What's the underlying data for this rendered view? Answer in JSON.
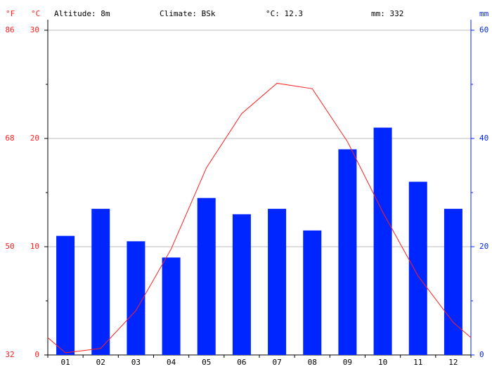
{
  "chart_data": {
    "type": "climate",
    "header": [
      "Altitude: 8m",
      "Climate: BSk",
      "°C: 12.3",
      "mm: 332"
    ],
    "unit_f": "°F",
    "unit_c": "°C",
    "unit_mm": "mm",
    "categories": [
      "01",
      "02",
      "03",
      "04",
      "05",
      "06",
      "07",
      "08",
      "09",
      "10",
      "11",
      "12"
    ],
    "series": [
      {
        "name": "mm",
        "color": "#0026ff",
        "axis": "y2",
        "values": [
          22,
          27,
          21,
          18,
          29,
          26,
          27,
          23,
          38,
          42,
          32,
          27
        ]
      },
      {
        "name": "°C",
        "color": "#ff2020",
        "values": [
          0.2,
          0.6,
          4.1,
          9.8,
          17.3,
          22.3,
          25.1,
          24.6,
          19.7,
          13.2,
          7.3,
          3.0
        ]
      }
    ],
    "ylim": [
      0,
      30
    ],
    "yticks": [
      0,
      10,
      20,
      30
    ],
    "yminorticks": [
      5,
      15,
      25
    ],
    "yticks_f": [
      {
        "value": 0,
        "label": "32"
      },
      {
        "value": 10,
        "label": "50"
      },
      {
        "value": 20,
        "label": "68"
      },
      {
        "value": 30,
        "label": "86"
      }
    ],
    "y2lim": [
      0,
      60
    ],
    "y2ticks": [
      0,
      20,
      40,
      60
    ],
    "y2minorticks": [
      10,
      30,
      50
    ],
    "grid": true
  }
}
